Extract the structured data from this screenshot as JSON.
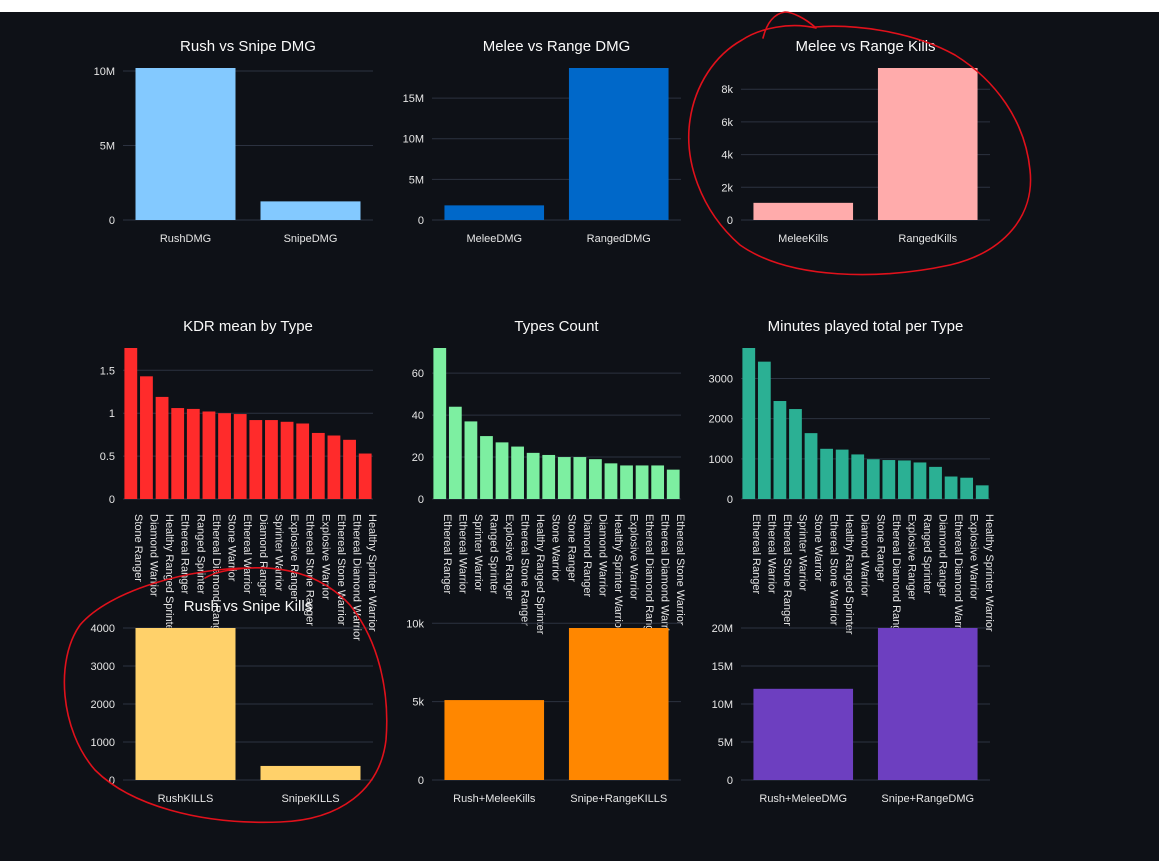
{
  "colors": {
    "background": "#0e1117",
    "grid": "#2c3240",
    "text": "#fafafa",
    "annotation": "#e0111b"
  },
  "chart_data": [
    {
      "id": "rush-vs-snipe-dmg",
      "type": "bar",
      "title": "Rush vs Snipe DMG",
      "categories": [
        "RushDMG",
        "SnipeDMG"
      ],
      "values": [
        10200000,
        1250000
      ],
      "ylim": [
        0,
        10200000
      ],
      "yticks": [
        0,
        5000000,
        10000000
      ],
      "ytick_labels": [
        "0",
        "5M",
        "10M"
      ],
      "color": "#83c9ff",
      "grid": true,
      "rotate_labels": false
    },
    {
      "id": "melee-vs-range-dmg",
      "type": "bar",
      "title": "Melee vs Range DMG",
      "categories": [
        "MeleeDMG",
        "RangedDMG"
      ],
      "values": [
        1800000,
        18700000
      ],
      "ylim": [
        0,
        18700000
      ],
      "yticks": [
        0,
        5000000,
        10000000,
        15000000
      ],
      "ytick_labels": [
        "0",
        "5M",
        "10M",
        "15M"
      ],
      "color": "#0068c9",
      "grid": true,
      "rotate_labels": false
    },
    {
      "id": "melee-vs-range-kills",
      "type": "bar",
      "title": "Melee vs Range Kills",
      "categories": [
        "MeleeKills",
        "RangedKills"
      ],
      "values": [
        1050,
        9300
      ],
      "ylim": [
        0,
        9300
      ],
      "yticks": [
        0,
        2000,
        4000,
        6000,
        8000
      ],
      "ytick_labels": [
        "0",
        "2k",
        "4k",
        "6k",
        "8k"
      ],
      "color": "#ffabab",
      "grid": true,
      "rotate_labels": false
    },
    {
      "id": "kdr-mean-by-type",
      "type": "bar",
      "title": "KDR mean by Type",
      "categories": [
        "Stone Ranger",
        "Diamond Warrior",
        "Healthy Ranged Sprinter",
        "Ethereal Ranger",
        "Ranged Sprinter",
        "Ethereal Diamond Ranger",
        "Stone Warrior",
        "Ethereal Warrior",
        "Diamond Ranger",
        "Sprinter Warrior",
        "Explosive Ranger",
        "Ethereal Stone Ranger",
        "Explosive Warrior",
        "Ethereal Stone Warrior",
        "Ethereal Diamond Warrior",
        "Healthy Sprinter Warrior"
      ],
      "values": [
        1.76,
        1.43,
        1.19,
        1.06,
        1.05,
        1.02,
        1.0,
        0.99,
        0.92,
        0.92,
        0.9,
        0.88,
        0.77,
        0.74,
        0.69,
        0.53
      ],
      "ylim": [
        0,
        1.76
      ],
      "yticks": [
        0,
        0.5,
        1,
        1.5
      ],
      "ytick_labels": [
        "0",
        "0.5",
        "1",
        "1.5"
      ],
      "color": "#ff2b2b",
      "grid": true,
      "rotate_labels": true
    },
    {
      "id": "types-count",
      "type": "bar",
      "title": "Types Count",
      "categories": [
        "Ethereal Ranger",
        "Ethereal Warrior",
        "Sprinter Warrior",
        "Ranged Sprinter",
        "Explosive Ranger",
        "Ethereal Stone Ranger",
        "Healthy Ranged Sprinter",
        "Stone Warrior",
        "Stone Ranger",
        "Diamond Ranger",
        "Diamond Warrior",
        "Healthy Sprinter Warrior",
        "Explosive Warrior",
        "Ethereal Diamond Ranger",
        "Ethereal Diamond Warrior",
        "Ethereal Stone Warrior"
      ],
      "values": [
        72,
        44,
        37,
        30,
        27,
        25,
        22,
        21,
        20,
        20,
        19,
        17,
        16,
        16,
        16,
        14
      ],
      "ylim": [
        0,
        72
      ],
      "yticks": [
        0,
        20,
        40,
        60
      ],
      "ytick_labels": [
        "0",
        "20",
        "40",
        "60"
      ],
      "color": "#7defa1",
      "grid": true,
      "rotate_labels": true
    },
    {
      "id": "minutes-played-per-type",
      "type": "bar",
      "title": "Minutes played total per Type",
      "categories": [
        "Ethereal Ranger",
        "Ethereal Warrior",
        "Ethereal Stone Ranger",
        "Sprinter Warrior",
        "Stone Warrior",
        "Ethereal Stone Warrior",
        "Healthy Ranged Sprinter",
        "Diamond Warrior",
        "Stone Ranger",
        "Ethereal Diamond Ranger",
        "Explosive Ranger",
        "Ranged Sprinter",
        "Diamond Ranger",
        "Ethereal Diamond Warrior",
        "Explosive Warrior",
        "Healthy Sprinter Warrior"
      ],
      "values": [
        3760,
        3420,
        2440,
        2240,
        1640,
        1250,
        1230,
        1110,
        990,
        970,
        960,
        910,
        800,
        560,
        530,
        340
      ],
      "ylim": [
        0,
        3760
      ],
      "yticks": [
        0,
        1000,
        2000,
        3000
      ],
      "ytick_labels": [
        "0",
        "1000",
        "2000",
        "3000"
      ],
      "color": "#2bb094",
      "grid": true,
      "rotate_labels": true
    },
    {
      "id": "rush-vs-snipe-kills",
      "type": "bar",
      "title": "Rush vs Snipe Kills",
      "categories": [
        "RushKILLS",
        "SnipeKILLS"
      ],
      "values": [
        4000,
        370
      ],
      "ylim": [
        0,
        4000
      ],
      "yticks": [
        0,
        1000,
        2000,
        3000,
        4000
      ],
      "ytick_labels": [
        "0",
        "1000",
        "2000",
        "3000",
        "4000"
      ],
      "color": "#ffd16a",
      "grid": true,
      "rotate_labels": false
    },
    {
      "id": "combined-kills",
      "type": "bar",
      "title": "",
      "categories": [
        "Rush+MeleeKills",
        "Snipe+RangeKILLS"
      ],
      "values": [
        5100,
        9700
      ],
      "ylim": [
        0,
        9700
      ],
      "yticks": [
        0,
        5000,
        10000
      ],
      "ytick_labels": [
        "0",
        "5k",
        "10k"
      ],
      "color": "#ff8700",
      "grid": true,
      "rotate_labels": false
    },
    {
      "id": "combined-dmg",
      "type": "bar",
      "title": "",
      "categories": [
        "Rush+MeleeDMG",
        "Snipe+RangeDMG"
      ],
      "values": [
        12000000,
        20000000
      ],
      "ylim": [
        0,
        20000000
      ],
      "yticks": [
        0,
        5000000,
        10000000,
        15000000,
        20000000
      ],
      "ytick_labels": [
        "0",
        "5M",
        "10M",
        "15M",
        "20M"
      ],
      "color": "#6d3fc0",
      "grid": true,
      "rotate_labels": false
    }
  ]
}
